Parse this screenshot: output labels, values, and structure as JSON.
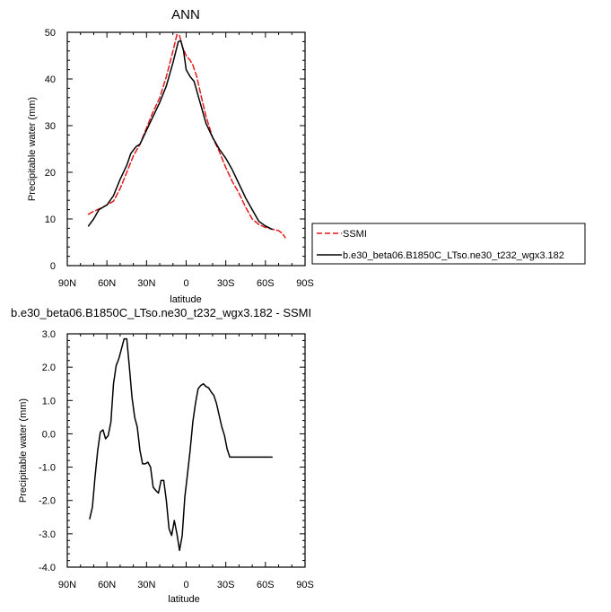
{
  "chart_data": [
    {
      "type": "line",
      "title": "ANN",
      "xlabel": "latitude",
      "ylabel": "Precipitable water (mm)",
      "xlim": [
        90,
        -90
      ],
      "ylim": [
        0,
        50
      ],
      "xticks": [
        90,
        60,
        30,
        0,
        -30,
        -60,
        -90
      ],
      "xtick_labels": [
        "90N",
        "60N",
        "30N",
        "0",
        "30S",
        "60S",
        "90S"
      ],
      "yticks": [
        0,
        10,
        20,
        30,
        40,
        50
      ],
      "ytick_labels": [
        "0",
        "10",
        "20",
        "30",
        "40",
        "50"
      ],
      "legend_position": "right",
      "series": [
        {
          "name": "SSMI",
          "color": "#e41a1c",
          "dash": "dashed",
          "x": [
            74,
            71,
            67,
            62,
            55,
            50,
            45,
            40,
            35,
            30,
            25,
            20,
            15,
            10,
            7,
            5,
            3,
            0,
            -3,
            -5,
            -8,
            -12,
            -15,
            -20,
            -25,
            -30,
            -35,
            -40,
            -45,
            -50,
            -55,
            -60,
            -65,
            -70,
            -73,
            -75
          ],
          "y": [
            11.0,
            11.5,
            12.0,
            12.7,
            13.8,
            16.5,
            20.0,
            23.5,
            26.0,
            29.5,
            33.0,
            36.0,
            40.5,
            46.0,
            49.5,
            49.3,
            47.0,
            45.0,
            44.0,
            43.0,
            40.5,
            35.5,
            32.0,
            27.5,
            24.5,
            21.0,
            18.0,
            15.5,
            12.5,
            10.0,
            8.8,
            8.2,
            7.8,
            7.5,
            6.8,
            6.0
          ]
        },
        {
          "name": "b.e30_beta06.B1850C_LTso.ne30_t232_wgx3.182",
          "color": "#000000",
          "dash": "solid",
          "x": [
            74,
            70,
            66,
            60,
            55,
            50,
            45,
            42,
            38,
            35,
            30,
            25,
            20,
            15,
            10,
            6,
            4,
            2,
            0,
            -3,
            -6,
            -10,
            -15,
            -20,
            -25,
            -30,
            -35,
            -40,
            -45,
            -50,
            -55,
            -60,
            -65
          ],
          "y": [
            8.5,
            10.0,
            12.0,
            13.0,
            15.0,
            18.5,
            21.5,
            24.0,
            25.5,
            26.0,
            29.0,
            32.0,
            35.0,
            38.5,
            43.5,
            48.0,
            48.2,
            46.0,
            42.0,
            40.5,
            39.5,
            35.5,
            30.5,
            27.5,
            25.0,
            23.0,
            20.5,
            17.5,
            14.5,
            12.0,
            9.5,
            8.5,
            7.8
          ]
        }
      ]
    },
    {
      "type": "line",
      "title": "b.e30_beta06.B1850C_LTso.ne30_t232_wgx3.182 - SSMI",
      "xlabel": "latitude",
      "ylabel": "Precipitable water (mm)",
      "xlim": [
        90,
        -90
      ],
      "ylim": [
        -4,
        3
      ],
      "xticks": [
        90,
        60,
        30,
        0,
        -30,
        -60,
        -90
      ],
      "xtick_labels": [
        "90N",
        "60N",
        "30N",
        "0",
        "30S",
        "60S",
        "90S"
      ],
      "yticks": [
        3,
        2,
        1,
        0,
        -1,
        -2,
        -3,
        -4
      ],
      "ytick_labels": [
        "3.0",
        "2.0",
        "1.0",
        "0.0",
        "-1.0",
        "-2.0",
        "-3.0",
        "-4.0"
      ],
      "series": [
        {
          "color": "#000000",
          "dash": "solid",
          "x": [
            73,
            71,
            69,
            67,
            65,
            63,
            61,
            59,
            57,
            55,
            53,
            51,
            49,
            47,
            45,
            43,
            41,
            39,
            37,
            35,
            33,
            31,
            29,
            27,
            25,
            23,
            21,
            19,
            17,
            15,
            13,
            11,
            9,
            7,
            5,
            3,
            1,
            -1,
            -3,
            -5,
            -7,
            -9,
            -11,
            -13,
            -15,
            -17,
            -19,
            -21,
            -23,
            -25,
            -27,
            -29,
            -31,
            -33,
            -35,
            -37,
            -39,
            -41,
            -43,
            -45,
            -47,
            -49,
            -51,
            -53,
            -55,
            -57,
            -59,
            -61,
            -63,
            -65
          ],
          "y": [
            -2.55,
            -2.2,
            -1.3,
            -0.5,
            0.05,
            0.12,
            -0.15,
            -0.05,
            0.35,
            1.5,
            2.05,
            2.25,
            2.55,
            2.85,
            2.85,
            2.0,
            1.1,
            0.5,
            0.2,
            -0.5,
            -0.9,
            -0.9,
            -0.85,
            -1.0,
            -1.6,
            -1.7,
            -1.78,
            -1.4,
            -1.4,
            -2.0,
            -2.85,
            -3.05,
            -2.6,
            -3.0,
            -3.5,
            -3.05,
            -1.9,
            -1.2,
            -0.5,
            0.35,
            0.9,
            1.35,
            1.45,
            1.5,
            1.42,
            1.38,
            1.25,
            1.15,
            0.9,
            0.55,
            0.2,
            -0.05,
            -0.45,
            -0.7,
            -0.7,
            -0.7,
            -0.7,
            -0.7,
            -0.7,
            -0.7,
            -0.7,
            -0.7,
            -0.7,
            -0.7,
            -0.7,
            -0.7,
            -0.7,
            -0.7,
            -0.7,
            -0.7
          ]
        }
      ]
    }
  ]
}
